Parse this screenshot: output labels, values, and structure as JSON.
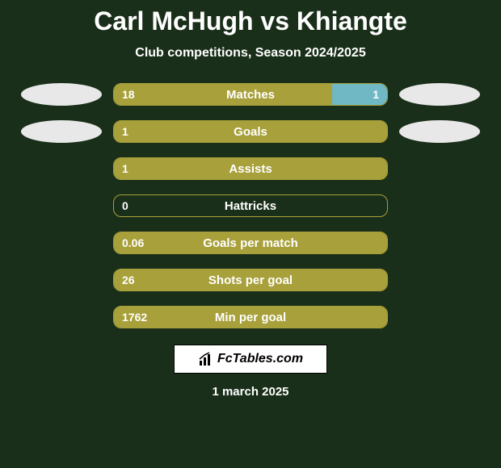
{
  "background_color": "#1a2f1a",
  "title": "Carl McHugh vs Khiangte",
  "subtitle": "Club competitions, Season 2024/2025",
  "brand": "FcTables.com",
  "date": "1 march 2025",
  "left_ellipse_color": "#e8e8e8",
  "right_ellipse_color": "#e8e8e8",
  "bar_border_color": "#a8a03a",
  "left_fill_color": "#a8a03a",
  "right_fill_color": "#6fb8c4",
  "stats": [
    {
      "label": "Matches",
      "left_val": "18",
      "right_val": "1",
      "left_pct": 80,
      "right_pct": 20,
      "show_left_ellipse": true,
      "show_right_ellipse": true
    },
    {
      "label": "Goals",
      "left_val": "1",
      "right_val": "",
      "left_pct": 100,
      "right_pct": 0,
      "show_left_ellipse": true,
      "show_right_ellipse": true
    },
    {
      "label": "Assists",
      "left_val": "1",
      "right_val": "",
      "left_pct": 100,
      "right_pct": 0,
      "show_left_ellipse": false,
      "show_right_ellipse": false
    },
    {
      "label": "Hattricks",
      "left_val": "0",
      "right_val": "",
      "left_pct": 0,
      "right_pct": 0,
      "show_left_ellipse": false,
      "show_right_ellipse": false
    },
    {
      "label": "Goals per match",
      "left_val": "0.06",
      "right_val": "",
      "left_pct": 100,
      "right_pct": 0,
      "show_left_ellipse": false,
      "show_right_ellipse": false
    },
    {
      "label": "Shots per goal",
      "left_val": "26",
      "right_val": "",
      "left_pct": 100,
      "right_pct": 0,
      "show_left_ellipse": false,
      "show_right_ellipse": false
    },
    {
      "label": "Min per goal",
      "left_val": "1762",
      "right_val": "",
      "left_pct": 100,
      "right_pct": 0,
      "show_left_ellipse": false,
      "show_right_ellipse": false
    }
  ]
}
